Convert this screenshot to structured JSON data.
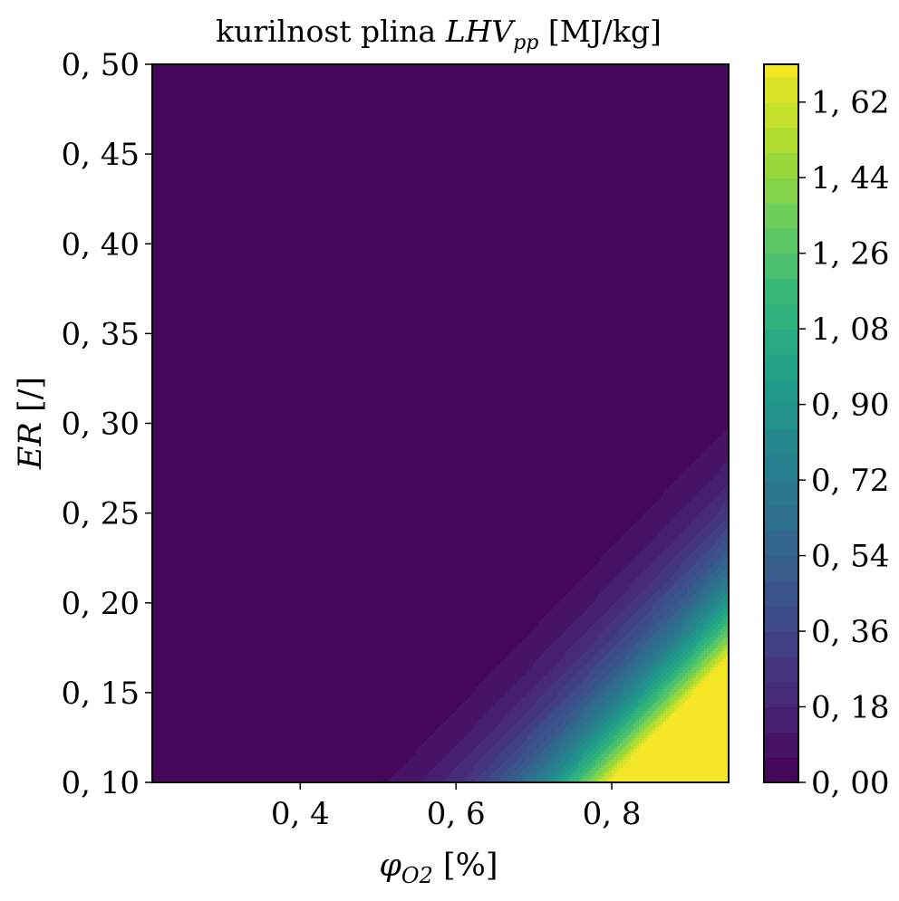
{
  "chart_data": {
    "type": "heatmap",
    "plot_kind": "filled-contour",
    "colormap": "viridis",
    "title": {
      "prefix": "kurilnost plina ",
      "symbol": "LHV",
      "subscript": "pp",
      "unit": " [MJ/kg]"
    },
    "xlabel": {
      "symbol": "φ",
      "subscript": "O2",
      "unit": " [%]"
    },
    "ylabel": {
      "symbol": "ER",
      "unit": " [/]"
    },
    "xlim": [
      0.21,
      0.95
    ],
    "ylim": [
      0.1,
      0.5
    ],
    "x_ticks": [
      {
        "value": 0.4,
        "label": "0, 4"
      },
      {
        "value": 0.6,
        "label": "0, 6"
      },
      {
        "value": 0.8,
        "label": "0, 8"
      }
    ],
    "y_ticks": [
      {
        "value": 0.1,
        "label": "0, 10"
      },
      {
        "value": 0.15,
        "label": "0, 15"
      },
      {
        "value": 0.2,
        "label": "0, 20"
      },
      {
        "value": 0.25,
        "label": "0, 25"
      },
      {
        "value": 0.3,
        "label": "0, 30"
      },
      {
        "value": 0.35,
        "label": "0, 35"
      },
      {
        "value": 0.4,
        "label": "0, 40"
      },
      {
        "value": 0.45,
        "label": "0, 45"
      },
      {
        "value": 0.5,
        "label": "0, 50"
      }
    ],
    "colorbar": {
      "range": [
        0,
        1.71
      ],
      "level_step": 0.06,
      "ticks": [
        {
          "value": 0.0,
          "label": "0, 00"
        },
        {
          "value": 0.18,
          "label": "0, 18"
        },
        {
          "value": 0.36,
          "label": "0, 36"
        },
        {
          "value": 0.54,
          "label": "0, 54"
        },
        {
          "value": 0.72,
          "label": "0, 72"
        },
        {
          "value": 0.9,
          "label": "0, 90"
        },
        {
          "value": 1.08,
          "label": "1, 08"
        },
        {
          "value": 1.26,
          "label": "1, 26"
        },
        {
          "value": 1.44,
          "label": "1, 44"
        },
        {
          "value": 1.62,
          "label": "1, 62"
        }
      ]
    },
    "field_estimate": {
      "description": "LHV ≈ A · max(0, φ − φ0(ER))^p, with zero-contour boundary φ0(ER) = φ0_at_ymin + k·(ER − ER_min)",
      "A": 26.7,
      "phi0_at_ymin": 0.245,
      "k": 2.21,
      "ER_min": 0.1,
      "p": 4.6,
      "max_value": 1.69
    }
  }
}
